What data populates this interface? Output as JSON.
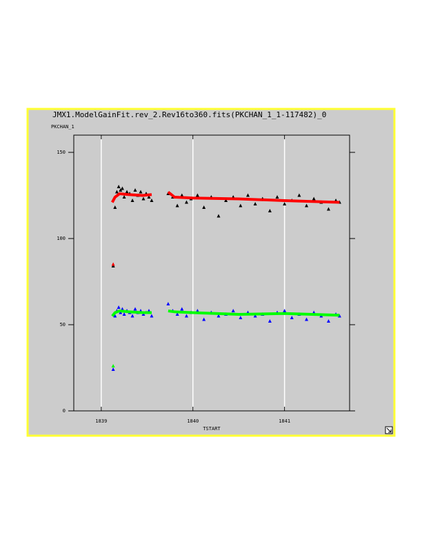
{
  "chart_data": {
    "type": "scatter",
    "title": "JMX1.ModelGainFit.rev_2.Rev16to360.fits(PKCHAN_1_1-117482)_0",
    "y_label": "PKCHAN_1",
    "x_label": "TSTART",
    "xlim": [
      1838.7,
      1841.71
    ],
    "ylim": [
      0,
      160
    ],
    "xticks": [
      1839,
      1840,
      1841
    ],
    "yticks": [
      0,
      50,
      100,
      150
    ],
    "grid": "x",
    "series": [
      {
        "color": "#000000",
        "mode": "markers",
        "x": [
          1839.13,
          1839.15,
          1839.17,
          1839.19,
          1839.21,
          1839.23,
          1839.25,
          1839.28,
          1839.31,
          1839.34,
          1839.37,
          1839.4,
          1839.43,
          1839.46,
          1839.49,
          1839.52,
          1839.55,
          1839.73,
          1839.78,
          1839.83,
          1839.88,
          1839.93,
          1839.98,
          1840.05,
          1840.12,
          1840.2,
          1840.28,
          1840.36,
          1840.44,
          1840.52,
          1840.6,
          1840.68,
          1840.76,
          1840.84,
          1840.92,
          1841.0,
          1841.08,
          1841.16,
          1841.24,
          1841.32,
          1841.4,
          1841.48,
          1841.56,
          1841.6
        ],
        "values": [
          84,
          118,
          127,
          130,
          128,
          129,
          124,
          127,
          126,
          122,
          128,
          125,
          127,
          123,
          126,
          124,
          122,
          126,
          124,
          119,
          125,
          121,
          123,
          125,
          118,
          124,
          113,
          122,
          124,
          119,
          125,
          120,
          123,
          116,
          124,
          120,
          122,
          125,
          119,
          123,
          121,
          117,
          122,
          121
        ]
      },
      {
        "color": "#0000ff",
        "mode": "markers",
        "x": [
          1839.13,
          1839.15,
          1839.17,
          1839.19,
          1839.21,
          1839.23,
          1839.25,
          1839.28,
          1839.31,
          1839.34,
          1839.37,
          1839.4,
          1839.43,
          1839.46,
          1839.49,
          1839.52,
          1839.55,
          1839.73,
          1839.78,
          1839.83,
          1839.88,
          1839.93,
          1839.98,
          1840.05,
          1840.12,
          1840.2,
          1840.28,
          1840.36,
          1840.44,
          1840.52,
          1840.6,
          1840.68,
          1840.76,
          1840.84,
          1840.92,
          1841.0,
          1841.08,
          1841.16,
          1841.24,
          1841.32,
          1841.4,
          1841.48,
          1841.56,
          1841.6
        ],
        "values": [
          24,
          55,
          58,
          60,
          57,
          59,
          56,
          58,
          57,
          55,
          59,
          57,
          58,
          56,
          57,
          58,
          55,
          62,
          58,
          56,
          59,
          55,
          57,
          58,
          53,
          57,
          55,
          56,
          58,
          54,
          57,
          55,
          56,
          52,
          57,
          58,
          54,
          56,
          53,
          57,
          55,
          52,
          56,
          55
        ]
      },
      {
        "color": "#ff0000",
        "mode": "lines",
        "x": [
          1839.12,
          1839.15,
          1839.2,
          1839.3,
          1839.45,
          1839.55,
          1839.64,
          1839.73,
          1839.8,
          1840.0,
          1840.5,
          1841.0,
          1841.6
        ],
        "values": [
          121,
          124,
          126,
          125.5,
          125,
          125.5,
          null,
          127,
          124,
          123.5,
          123,
          122,
          121
        ]
      },
      {
        "color": "#00ff00",
        "mode": "lines",
        "x": [
          1839.12,
          1839.15,
          1839.2,
          1839.3,
          1839.45,
          1839.55,
          1839.64,
          1839.73,
          1839.8,
          1840.0,
          1840.5,
          1841.0,
          1841.6
        ],
        "values": [
          55,
          57,
          58,
          57.5,
          57,
          57,
          null,
          58,
          57.5,
          57,
          56,
          56.5,
          55.5
        ]
      },
      {
        "color": "#ff0000",
        "mode": "markers",
        "x": [
          1839.13
        ],
        "values": [
          85
        ]
      },
      {
        "color": "#00ff00",
        "mode": "markers",
        "x": [
          1839.13
        ],
        "values": [
          26
        ]
      }
    ]
  }
}
